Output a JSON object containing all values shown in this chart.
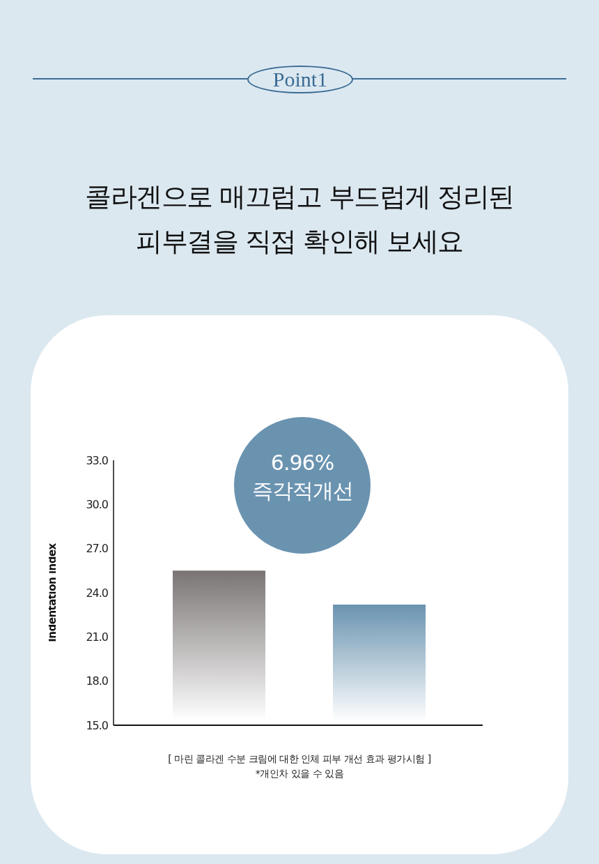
{
  "chart_data": {
    "type": "bar",
    "title": "콜라겐으로 매끄럽고 부드럽게 정리된 피부결을 직접 확인해 보세요",
    "ylabel": "Indentation index",
    "categories": [
      null,
      null
    ],
    "values": [
      25.5,
      23.2
    ],
    "colors": [
      "#7a7574",
      "#6a93b0"
    ],
    "ylim": [
      15,
      33
    ],
    "yticks": [
      {
        "value": 15,
        "label": "15.0"
      },
      {
        "value": 18,
        "label": "18.0"
      },
      {
        "value": 21,
        "label": "21.0"
      },
      {
        "value": 24,
        "label": "24.0"
      },
      {
        "value": 27,
        "label": "27.0"
      },
      {
        "value": 30,
        "label": "30.0"
      },
      {
        "value": 33,
        "label": "33.0"
      }
    ],
    "annotations": [
      "Point1",
      "6.96%",
      "즉각적개선",
      "[ 마린 콜라겐 수분 크림에 대한 인체 피부 개선 효과 평가시험 ]",
      "*개인차 있을 수 있음"
    ]
  }
}
